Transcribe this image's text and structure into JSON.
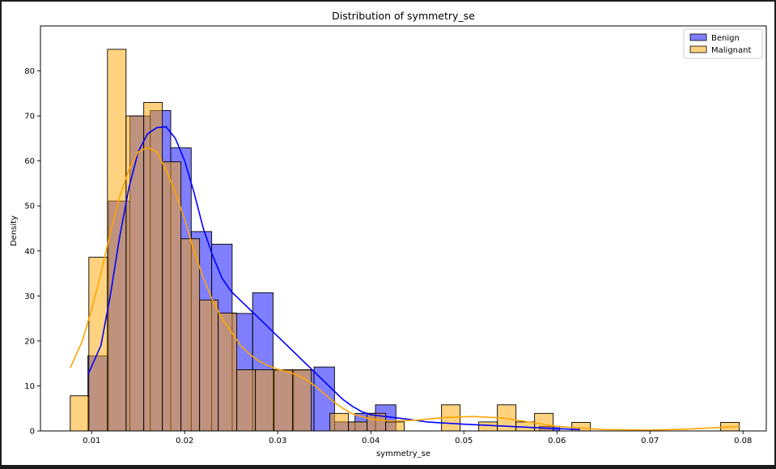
{
  "chart_data": {
    "type": "histogram",
    "title": "Distribution of symmetry_se",
    "xlabel": "symmetry_se",
    "ylabel": "Density",
    "xlim": [
      0.0045,
      0.0825
    ],
    "ylim": [
      0,
      90
    ],
    "xticks": [
      0.01,
      0.02,
      0.03,
      0.04,
      0.05,
      0.06,
      0.07,
      0.08
    ],
    "xtick_labels": [
      "0.01",
      "0.02",
      "0.03",
      "0.04",
      "0.05",
      "0.06",
      "0.07",
      "0.08"
    ],
    "yticks": [
      0,
      10,
      20,
      30,
      40,
      50,
      60,
      70,
      80
    ],
    "ytick_labels": [
      "0",
      "10",
      "20",
      "30",
      "40",
      "50",
      "60",
      "70",
      "80"
    ],
    "legend_position": "top-right",
    "grid": false,
    "series": [
      {
        "name": "Benign",
        "color": "#0000ff",
        "bin_edges": [
          0.0096,
          0.0118,
          0.0141,
          0.0163,
          0.0185,
          0.0207,
          0.0229,
          0.0251,
          0.0273,
          0.0295,
          0.0317,
          0.0339,
          0.0361,
          0.0383,
          0.0405,
          0.0427,
          0.0449,
          0.0471,
          0.0493,
          0.0515,
          0.0537,
          0.0559,
          0.0581,
          0.0603,
          0.0625
        ],
        "values": [
          16.7,
          51.1,
          70.0,
          71.2,
          62.9,
          44.3,
          41.5,
          26.1,
          30.7,
          13.5,
          13.5,
          14.2,
          2.0,
          3.9,
          5.8,
          0,
          0,
          0,
          0,
          0,
          0,
          0,
          1.0,
          0
        ],
        "kde_x": [
          0.0096,
          0.011,
          0.012,
          0.013,
          0.014,
          0.015,
          0.016,
          0.017,
          0.018,
          0.019,
          0.02,
          0.021,
          0.022,
          0.023,
          0.024,
          0.025,
          0.026,
          0.027,
          0.028,
          0.029,
          0.03,
          0.031,
          0.032,
          0.033,
          0.034,
          0.035,
          0.036,
          0.037,
          0.038,
          0.039,
          0.04,
          0.042,
          0.044,
          0.046,
          0.05,
          0.055,
          0.06,
          0.0625
        ],
        "kde_y": [
          12.5,
          19,
          30,
          43,
          54,
          62,
          66,
          67.4,
          67.6,
          65,
          60,
          53,
          45,
          39,
          34,
          31,
          29,
          27,
          25,
          23,
          21,
          19,
          17,
          15,
          13,
          11,
          9,
          7,
          5.5,
          4.3,
          3.6,
          3.1,
          2.6,
          2.0,
          1.5,
          1.0,
          0.5,
          0.3
        ]
      },
      {
        "name": "Malignant",
        "color": "#ffa500",
        "bin_edges": [
          0.0077,
          0.0097,
          0.0117,
          0.0137,
          0.0156,
          0.0176,
          0.0196,
          0.0216,
          0.0236,
          0.0256,
          0.0276,
          0.0296,
          0.0316,
          0.0336,
          0.0356,
          0.0376,
          0.0396,
          0.0416,
          0.0436,
          0.0456,
          0.0476,
          0.0496,
          0.0516,
          0.0536,
          0.0556,
          0.0576,
          0.0596,
          0.0616,
          0.0636,
          0.0656,
          0.0676,
          0.0696,
          0.0716,
          0.0736,
          0.0756,
          0.0776,
          0.0796
        ],
        "values": [
          7.8,
          38.6,
          84.8,
          70.0,
          73.0,
          59.8,
          42.7,
          29.1,
          26.2,
          13.6,
          13.6,
          13.6,
          13.6,
          0,
          3.9,
          2.0,
          3.9,
          2.0,
          0,
          0,
          5.8,
          0,
          2.0,
          5.8,
          2.0,
          3.9,
          0,
          1.9,
          0,
          0,
          0,
          0,
          0,
          0,
          0,
          1.9
        ],
        "kde_x": [
          0.0077,
          0.009,
          0.01,
          0.011,
          0.012,
          0.013,
          0.014,
          0.015,
          0.016,
          0.017,
          0.018,
          0.019,
          0.02,
          0.021,
          0.022,
          0.023,
          0.024,
          0.025,
          0.026,
          0.027,
          0.028,
          0.029,
          0.03,
          0.031,
          0.032,
          0.033,
          0.034,
          0.035,
          0.036,
          0.037,
          0.038,
          0.04,
          0.042,
          0.045,
          0.048,
          0.051,
          0.054,
          0.057,
          0.06,
          0.065,
          0.07,
          0.074,
          0.0796
        ],
        "kde_y": [
          14,
          20,
          27,
          35,
          44,
          52,
          58,
          62,
          63,
          62,
          58,
          53,
          47,
          40,
          34,
          29,
          25,
          22,
          19,
          17,
          15.5,
          14.5,
          13.7,
          13.2,
          12.5,
          11.5,
          10,
          8.2,
          6.5,
          5,
          3.8,
          2.6,
          2.2,
          2.4,
          3.0,
          3.2,
          2.9,
          2.0,
          1.0,
          0.3,
          0.2,
          0.4,
          1.0
        ]
      }
    ]
  }
}
